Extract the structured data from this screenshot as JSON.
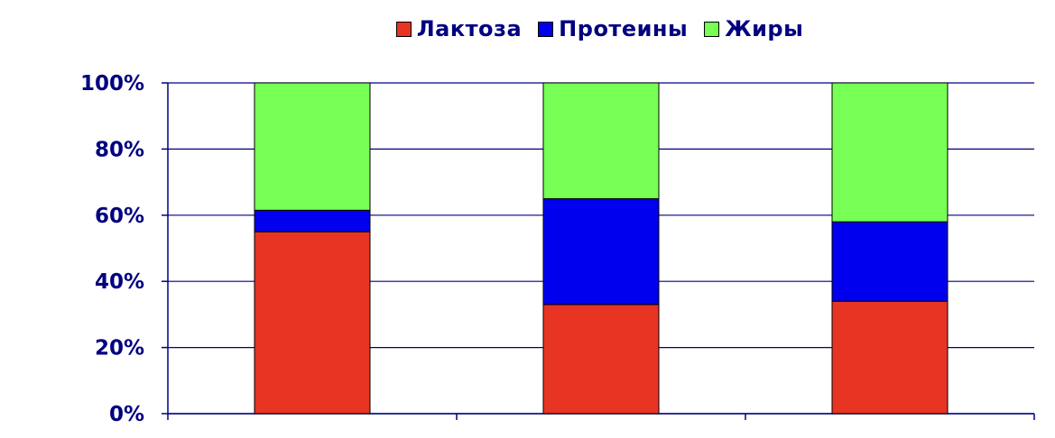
{
  "chart_data": {
    "type": "bar",
    "stacked": true,
    "percent_stacked": true,
    "title": "",
    "xlabel": "",
    "ylabel": "",
    "categories": [
      "",
      "",
      ""
    ],
    "series": [
      {
        "name": "Лактоза",
        "color": "#e83423",
        "values": [
          55,
          33,
          34
        ]
      },
      {
        "name": "Протеины",
        "color": "#0000ee",
        "values": [
          6.5,
          32,
          24
        ]
      },
      {
        "name": "Жиры",
        "color": "#77ff55",
        "values": [
          38.5,
          35,
          42
        ]
      }
    ],
    "ylim": [
      0,
      100
    ],
    "y_ticks": [
      "0%",
      "20%",
      "40%",
      "60%",
      "80%",
      "100%"
    ],
    "grid": true,
    "legend_position": "top"
  },
  "colors": {
    "axis_text": "#000080",
    "grid": "#000080",
    "bar_outline": "#000000"
  }
}
